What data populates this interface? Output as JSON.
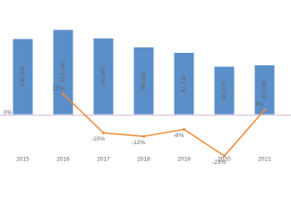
{
  "chart_data": {
    "type": "bar-line",
    "categories": [
      "2015",
      "2016",
      "2017",
      "2018",
      "2019",
      "2020",
      "2021"
    ],
    "series": [
      {
        "type": "bar",
        "color": "#5b8fc9",
        "values": [
          100050,
          112180,
          100807,
          89026,
          81716,
          63274,
          65188
        ],
        "value_labels": [
          "100,050",
          "112,180",
          "100,807",
          "89,026",
          "81,716",
          "63,274",
          "65,188"
        ]
      },
      {
        "type": "line",
        "axis": "y2",
        "color": "#ed8b3a",
        "values": [
          null,
          12,
          -10,
          -12,
          -8,
          -23,
          3
        ],
        "value_labels": [
          null,
          "12%",
          "-10%",
          "-12%",
          "-8%",
          "-23%",
          "3%"
        ]
      }
    ],
    "ylim": [
      -60000,
      140000
    ],
    "y2lim": [
      -25,
      60
    ],
    "y2ticks": [
      {
        "value": 0,
        "label": "0%"
      }
    ]
  }
}
